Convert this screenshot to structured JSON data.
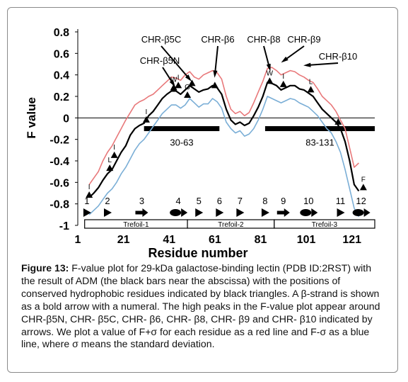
{
  "chart_data": {
    "type": "line",
    "title": "",
    "xlabel": "Residue number",
    "ylabel": "F value",
    "xlim": [
      1,
      131
    ],
    "ylim": [
      -1,
      0.8
    ],
    "xticks": [
      1,
      21,
      41,
      61,
      81,
      101,
      121
    ],
    "yticks": [
      0.8,
      0.6,
      0.4,
      0.2,
      0,
      -0.2,
      -0.4,
      -0.6,
      -0.8,
      -1
    ],
    "ytick_labels": [
      "0.8",
      "0.6",
      "0.4",
      "0.2",
      "0",
      "-0.2",
      "-0.4",
      "-0.6",
      "-0.8",
      "-1"
    ],
    "series": [
      {
        "role": "F value",
        "color": "#000000",
        "x": [
          6,
          8,
          10,
          12,
          14,
          16,
          18,
          20,
          22,
          24,
          26,
          28,
          30,
          32,
          34,
          36,
          38,
          40,
          42,
          44,
          46,
          48,
          50,
          52,
          54,
          56,
          58,
          60,
          62,
          64,
          66,
          68,
          70,
          72,
          74,
          76,
          78,
          80,
          82,
          84,
          86,
          88,
          90,
          92,
          94,
          96,
          98,
          100,
          102,
          104,
          106,
          108,
          110,
          112,
          114,
          116,
          118,
          120,
          122,
          124
        ],
        "y": [
          -0.74,
          -0.7,
          -0.65,
          -0.58,
          -0.52,
          -0.48,
          -0.4,
          -0.32,
          -0.26,
          -0.16,
          -0.1,
          -0.07,
          -0.05,
          0.02,
          0.06,
          0.12,
          0.18,
          0.22,
          0.25,
          0.25,
          0.22,
          0.26,
          0.3,
          0.27,
          0.24,
          0.26,
          0.27,
          0.3,
          0.28,
          0.22,
          0.08,
          -0.02,
          -0.06,
          -0.04,
          -0.07,
          -0.05,
          0.02,
          0.1,
          0.2,
          0.33,
          0.32,
          0.3,
          0.26,
          0.28,
          0.3,
          0.3,
          0.27,
          0.26,
          0.23,
          0.2,
          0.14,
          0.08,
          0.04,
          0.0,
          -0.04,
          -0.1,
          -0.22,
          -0.4,
          -0.62,
          -0.68
        ]
      },
      {
        "role": "F+σ",
        "color": "#e8787a",
        "x": [
          6,
          8,
          10,
          12,
          14,
          16,
          18,
          20,
          22,
          24,
          26,
          28,
          30,
          32,
          34,
          36,
          38,
          40,
          42,
          44,
          46,
          48,
          50,
          52,
          54,
          56,
          58,
          60,
          62,
          64,
          66,
          68,
          70,
          72,
          74,
          76,
          78,
          80,
          82,
          84,
          86,
          88,
          90,
          92,
          94,
          96,
          98,
          100,
          102,
          104,
          106,
          108,
          110,
          112,
          114,
          116,
          118,
          120,
          122,
          124
        ],
        "y": [
          -0.62,
          -0.56,
          -0.5,
          -0.4,
          -0.32,
          -0.26,
          -0.18,
          -0.1,
          -0.02,
          0.05,
          0.12,
          0.15,
          0.17,
          0.2,
          0.22,
          0.26,
          0.3,
          0.34,
          0.38,
          0.37,
          0.35,
          0.4,
          0.43,
          0.38,
          0.36,
          0.4,
          0.42,
          0.44,
          0.42,
          0.36,
          0.2,
          0.08,
          0.04,
          0.06,
          0.02,
          0.05,
          0.14,
          0.24,
          0.34,
          0.46,
          0.47,
          0.44,
          0.4,
          0.42,
          0.44,
          0.43,
          0.4,
          0.38,
          0.35,
          0.33,
          0.27,
          0.2,
          0.16,
          0.12,
          0.06,
          -0.02,
          -0.1,
          -0.28,
          -0.46,
          -0.42
        ]
      },
      {
        "role": "F-σ",
        "color": "#7aaed6",
        "x": [
          6,
          8,
          10,
          12,
          14,
          16,
          18,
          20,
          22,
          24,
          26,
          28,
          30,
          32,
          34,
          36,
          38,
          40,
          42,
          44,
          46,
          48,
          50,
          52,
          54,
          56,
          58,
          60,
          62,
          64,
          66,
          68,
          70,
          72,
          74,
          76,
          78,
          80,
          82,
          84,
          86,
          88,
          90,
          92,
          94,
          96,
          98,
          100,
          102,
          104,
          106,
          108,
          110,
          112,
          114,
          116,
          118,
          120,
          122,
          124
        ],
        "y": [
          -0.9,
          -0.86,
          -0.82,
          -0.76,
          -0.7,
          -0.66,
          -0.6,
          -0.52,
          -0.46,
          -0.38,
          -0.3,
          -0.24,
          -0.2,
          -0.14,
          -0.08,
          -0.02,
          0.04,
          0.08,
          0.12,
          0.12,
          0.09,
          0.12,
          0.18,
          0.14,
          0.1,
          0.13,
          0.13,
          0.18,
          0.15,
          0.09,
          -0.04,
          -0.1,
          -0.14,
          -0.12,
          -0.17,
          -0.15,
          -0.1,
          -0.02,
          0.08,
          0.2,
          0.18,
          0.16,
          0.14,
          0.16,
          0.18,
          0.17,
          0.14,
          0.12,
          0.1,
          0.06,
          0.02,
          -0.04,
          -0.1,
          -0.14,
          -0.22,
          -0.32,
          -0.48,
          -0.66,
          -0.84,
          -0.92
        ]
      }
    ],
    "adm_bars": [
      {
        "label": "30-63",
        "x0": 30,
        "x1": 63,
        "y": -0.1
      },
      {
        "label": "83-131",
        "x0": 83,
        "x1": 131,
        "y": -0.1
      }
    ],
    "triangles": [
      {
        "x": 6,
        "y": -0.73,
        "label": "I"
      },
      {
        "x": 15,
        "y": -0.48,
        "label": "L"
      },
      {
        "x": 17,
        "y": -0.36,
        "label": "I"
      },
      {
        "x": 31,
        "y": -0.03,
        "label": "I"
      },
      {
        "x": 43,
        "y": 0.27,
        "label": "W"
      },
      {
        "x": 45,
        "y": 0.29,
        "label": "I"
      },
      {
        "x": 49,
        "y": 0.2,
        "label": "G"
      },
      {
        "x": 51,
        "y": 0.31,
        "label": ""
      },
      {
        "x": 61,
        "y": 0.29,
        "label": ""
      },
      {
        "x": 85,
        "y": 0.33,
        "label": "W"
      },
      {
        "x": 91,
        "y": 0.3,
        "label": "I"
      },
      {
        "x": 103,
        "y": 0.25,
        "label": "L"
      },
      {
        "x": 115,
        "y": -0.05,
        "label": ""
      },
      {
        "x": 126,
        "y": -0.66,
        "label": "F"
      }
    ],
    "annotations": [
      {
        "label": "CHR-β5N",
        "x": 43,
        "y": 0.23
      },
      {
        "label": "CHR-β5C",
        "x": 50,
        "y": 0.28
      },
      {
        "label": "CHR-β6",
        "x": 61,
        "y": 0.32
      },
      {
        "label": "CHR-β8",
        "x": 85,
        "y": 0.38
      },
      {
        "label": "CHR-β9",
        "x": 91,
        "y": 0.45
      },
      {
        "label": "CHR-β10",
        "x": 101,
        "y": 0.41
      }
    ],
    "strands": [
      {
        "label": "1",
        "x": 5,
        "shape": "triangle"
      },
      {
        "label": "2",
        "x": 14,
        "shape": "triangle"
      },
      {
        "label": "3",
        "x": 29,
        "shape": "arrow"
      },
      {
        "label": "4",
        "x": 45,
        "shape": "arrow-oval"
      },
      {
        "label": "5",
        "x": 54,
        "shape": "triangle"
      },
      {
        "label": "6",
        "x": 63,
        "shape": "triangle"
      },
      {
        "label": "7",
        "x": 72,
        "shape": "triangle"
      },
      {
        "label": "8",
        "x": 83,
        "shape": "triangle"
      },
      {
        "label": "9",
        "x": 91,
        "shape": "arrow"
      },
      {
        "label": "10",
        "x": 102,
        "shape": "arrow-oval"
      },
      {
        "label": "11",
        "x": 116,
        "shape": "triangle"
      },
      {
        "label": "12",
        "x": 125,
        "shape": "arrow-oval"
      }
    ],
    "trefoils": [
      {
        "label": "Trefoil-1",
        "x0": 4,
        "x1": 49
      },
      {
        "label": "Trefoil-2",
        "x0": 49,
        "x1": 87
      },
      {
        "label": "Trefoil-3",
        "x0": 87,
        "x1": 131
      }
    ]
  },
  "caption": {
    "bold": "Figure 13:",
    "text": " F-value plot for 29-kDa galactose-binding lectin (PDB ID:2RST) with the result of ADM (the black bars near the abscissa) with the positions of conserved hydrophobic residues indicated by black triangles. A β-strand is shown as a bold arrow with a numeral. The high peaks in the F-value plot appear around CHR-β5N, CHR- β5C, CHR- β6, CHR- β8, CHR- β9 and CHR- β10 indicated by arrows. We plot a value of F+σ for each residue as a red line and F-σ as a blue line, where σ means the standard deviation."
  }
}
